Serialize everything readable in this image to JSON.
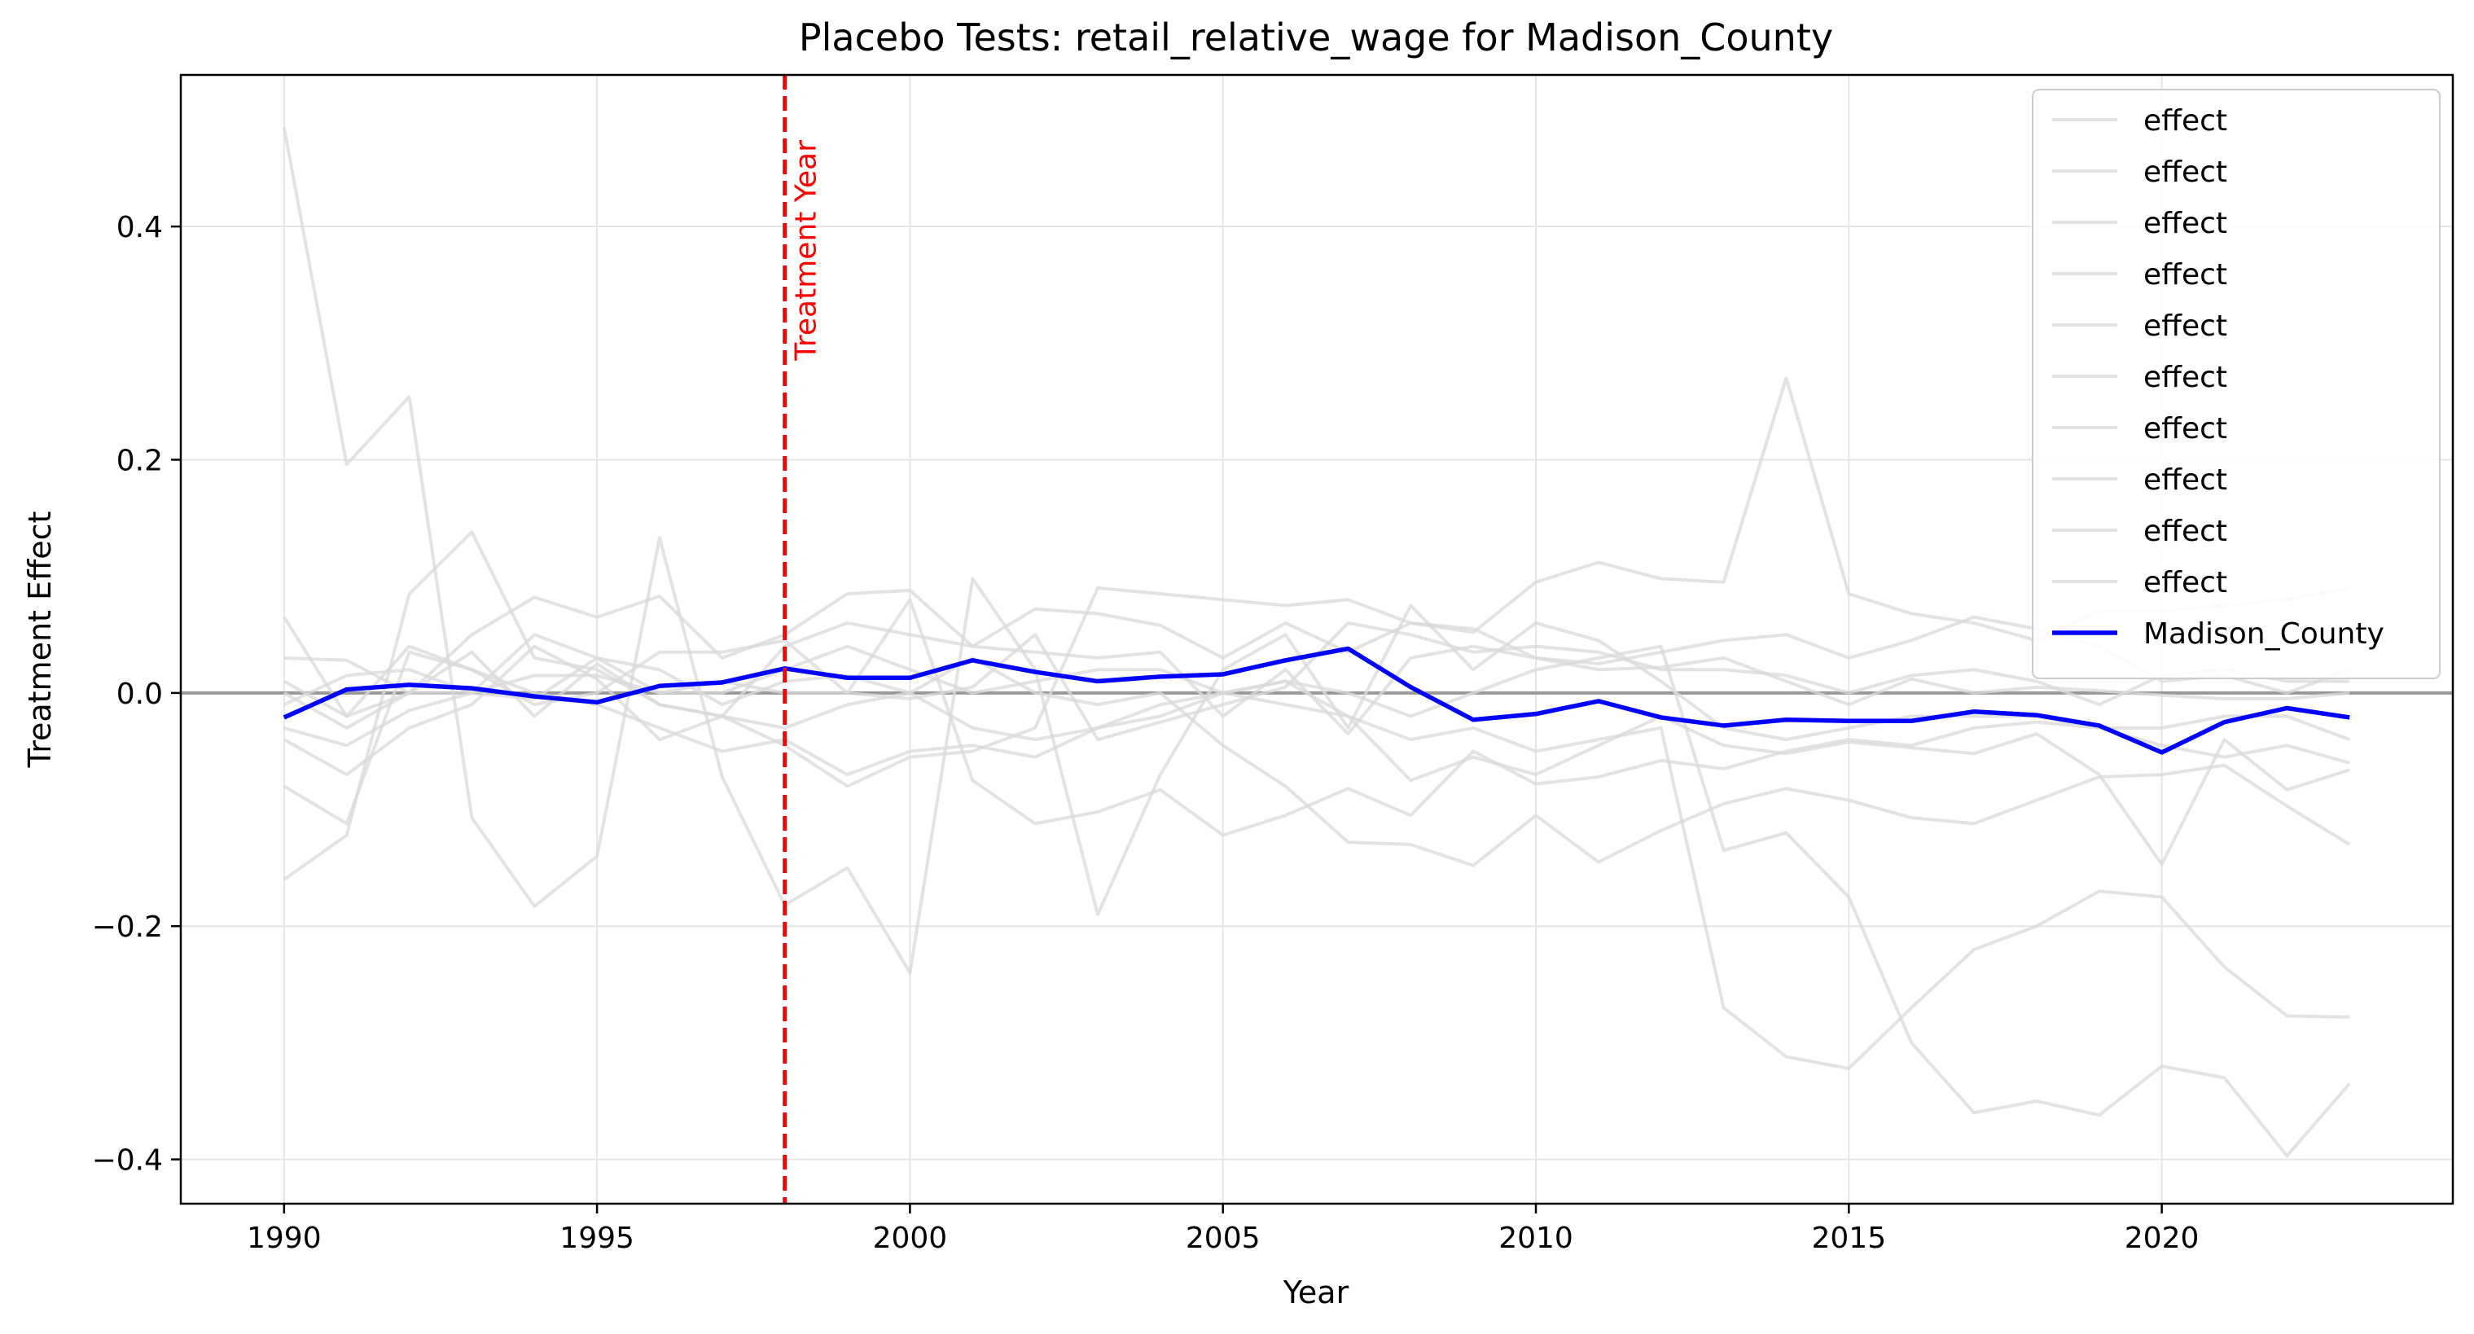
{
  "chart_data": {
    "type": "line",
    "title": "Placebo Tests: retail_relative_wage for Madison_County",
    "xlabel": "Year",
    "ylabel": "Treatment Effect",
    "xlim": [
      1988.35,
      2024.65
    ],
    "ylim": [
      -0.438,
      0.53
    ],
    "x_ticks": [
      1990,
      1995,
      2000,
      2005,
      2010,
      2015,
      2020
    ],
    "x_tick_labels": [
      "1990",
      "1995",
      "2000",
      "2005",
      "2010",
      "2015",
      "2020"
    ],
    "y_ticks": [
      -0.4,
      -0.2,
      0.0,
      0.2,
      0.4
    ],
    "y_tick_labels": [
      "−0.4",
      "−0.2",
      "0.0",
      "0.2",
      "0.4"
    ],
    "grid": true,
    "legend_position": "top-right",
    "zero_line": {
      "y": 0.0,
      "color": "#999999"
    },
    "treatment_line": {
      "x": 1998,
      "label": "Treatment Year",
      "color": "#ff0000"
    },
    "x": [
      1990,
      1991,
      1992,
      1993,
      1994,
      1995,
      1996,
      1997,
      1998,
      1999,
      2000,
      2001,
      2002,
      2003,
      2004,
      2005,
      2006,
      2007,
      2008,
      2009,
      2010,
      2011,
      2012,
      2013,
      2014,
      2015,
      2016,
      2017,
      2018,
      2019,
      2020,
      2021,
      2022,
      2023
    ],
    "series": [
      {
        "name": "effect",
        "color": "#d9d9d9",
        "role": "placebo",
        "values": [
          0.485,
          0.196,
          0.254,
          -0.107,
          -0.183,
          -0.14,
          0.133,
          -0.072,
          -0.182,
          -0.15,
          -0.24,
          0.098,
          0.02,
          -0.19,
          -0.07,
          0.02,
          0.05,
          -0.03,
          0.075,
          0.02,
          0.06,
          0.045,
          0.01,
          -0.03,
          -0.04,
          -0.03,
          -0.02,
          -0.02,
          -0.02,
          -0.03,
          -0.03,
          -0.02,
          -0.02,
          -0.04
        ]
      },
      {
        "name": "effect",
        "color": "#d9d9d9",
        "role": "placebo",
        "values": [
          -0.16,
          -0.122,
          0.085,
          0.138,
          0.03,
          0.02,
          -0.01,
          -0.02,
          -0.03,
          -0.01,
          0.0,
          -0.03,
          -0.04,
          -0.03,
          -0.02,
          0.0,
          0.01,
          0.0,
          -0.02,
          0.0,
          0.02,
          0.03,
          0.04,
          -0.135,
          -0.12,
          -0.175,
          -0.3,
          -0.36,
          -0.35,
          -0.362,
          -0.32,
          -0.33,
          -0.397,
          -0.335
        ]
      },
      {
        "name": "effect",
        "color": "#d9d9d9",
        "role": "placebo",
        "values": [
          -0.08,
          -0.112,
          0.035,
          0.02,
          0.0,
          -0.01,
          -0.03,
          -0.05,
          -0.04,
          -0.07,
          -0.05,
          -0.045,
          -0.055,
          -0.03,
          -0.01,
          0.0,
          -0.01,
          -0.02,
          -0.04,
          -0.03,
          -0.05,
          -0.04,
          -0.03,
          -0.27,
          -0.312,
          -0.322,
          -0.27,
          -0.22,
          -0.2,
          -0.17,
          -0.175,
          -0.235,
          -0.277,
          -0.278
        ]
      },
      {
        "name": "effect",
        "color": "#d9d9d9",
        "role": "placebo",
        "values": [
          0.065,
          -0.02,
          0.0,
          0.05,
          0.082,
          0.065,
          0.083,
          0.03,
          0.05,
          0.085,
          0.088,
          0.04,
          0.072,
          0.068,
          0.058,
          0.03,
          0.06,
          0.035,
          0.06,
          0.052,
          0.095,
          0.112,
          0.098,
          0.095,
          0.27,
          0.085,
          0.068,
          0.06,
          0.045,
          0.07,
          0.07,
          0.075,
          0.08,
          0.09
        ]
      },
      {
        "name": "effect",
        "color": "#d9d9d9",
        "role": "placebo",
        "values": [
          0.03,
          0.028,
          0.0,
          0.035,
          -0.02,
          0.025,
          -0.01,
          -0.02,
          0.04,
          0.06,
          0.05,
          0.04,
          0.035,
          0.03,
          0.035,
          -0.02,
          0.02,
          -0.035,
          0.03,
          0.04,
          0.03,
          0.025,
          0.035,
          0.045,
          0.05,
          0.03,
          0.045,
          0.065,
          0.055,
          0.04,
          0.01,
          0.015,
          0.0,
          0.02
        ]
      },
      {
        "name": "effect",
        "color": "#d9d9d9",
        "role": "placebo",
        "values": [
          0.01,
          -0.02,
          0.04,
          0.02,
          -0.01,
          0.0,
          0.035,
          0.035,
          0.045,
          0.0,
          -0.005,
          0.005,
          0.05,
          -0.04,
          -0.025,
          -0.01,
          0.005,
          0.06,
          0.05,
          0.035,
          0.04,
          0.035,
          0.02,
          0.02,
          0.015,
          0.0,
          0.015,
          0.02,
          0.01,
          -0.01,
          0.015,
          0.02,
          0.01,
          0.01
        ]
      },
      {
        "name": "effect",
        "color": "#d9d9d9",
        "role": "placebo",
        "values": [
          -0.03,
          -0.045,
          -0.015,
          0.0,
          0.015,
          0.015,
          0.0,
          0.01,
          0.0,
          0.0,
          0.08,
          -0.075,
          -0.112,
          -0.102,
          -0.083,
          -0.122,
          -0.105,
          -0.082,
          -0.105,
          -0.05,
          -0.078,
          -0.072,
          -0.058,
          -0.065,
          -0.05,
          -0.04,
          -0.045,
          -0.03,
          -0.025,
          -0.03,
          -0.045,
          -0.055,
          -0.045,
          -0.06
        ]
      },
      {
        "name": "effect",
        "color": "#d9d9d9",
        "role": "placebo",
        "values": [
          -0.04,
          -0.07,
          -0.03,
          -0.01,
          0.04,
          0.012,
          -0.04,
          -0.02,
          -0.045,
          -0.08,
          -0.055,
          -0.05,
          -0.03,
          0.09,
          0.085,
          0.08,
          0.075,
          0.08,
          0.06,
          0.055,
          0.03,
          0.02,
          0.022,
          0.03,
          0.01,
          -0.01,
          0.012,
          0.0,
          0.005,
          0.002,
          -0.002,
          -0.005,
          -0.005,
          0.0
        ]
      },
      {
        "name": "effect",
        "color": "#d9d9d9",
        "role": "placebo",
        "values": [
          -0.01,
          0.015,
          0.02,
          0.0,
          -0.005,
          0.03,
          0.02,
          -0.01,
          0.01,
          0.015,
          0.0,
          0.03,
          0.0,
          -0.01,
          0.0,
          -0.045,
          -0.08,
          -0.128,
          -0.13,
          -0.148,
          -0.105,
          -0.145,
          -0.118,
          -0.095,
          -0.082,
          -0.092,
          -0.107,
          -0.112,
          -0.092,
          -0.072,
          -0.07,
          -0.062,
          -0.097,
          -0.13
        ]
      },
      {
        "name": "effect",
        "color": "#d9d9d9",
        "role": "placebo",
        "values": [
          0.0,
          -0.03,
          0.0,
          0.0,
          0.05,
          0.03,
          0.0,
          0.0,
          0.02,
          0.04,
          0.02,
          0.0,
          0.01,
          0.02,
          0.02,
          0.0,
          0.01,
          -0.02,
          -0.075,
          -0.055,
          -0.07,
          -0.045,
          -0.02,
          -0.045,
          -0.052,
          -0.042,
          -0.047,
          -0.052,
          -0.035,
          -0.07,
          -0.147,
          -0.04,
          -0.083,
          -0.066
        ]
      },
      {
        "name": "Madison_County",
        "color": "#0000ff",
        "role": "treated",
        "values": [
          -0.021,
          0.003,
          0.007,
          0.004,
          -0.003,
          -0.008,
          0.006,
          0.009,
          0.021,
          0.013,
          0.013,
          0.028,
          0.018,
          0.01,
          0.014,
          0.016,
          0.028,
          0.038,
          0.005,
          -0.023,
          -0.018,
          -0.007,
          -0.021,
          -0.028,
          -0.023,
          -0.024,
          -0.024,
          -0.016,
          -0.019,
          -0.028,
          -0.051,
          -0.025,
          -0.013,
          -0.021
        ]
      }
    ]
  }
}
